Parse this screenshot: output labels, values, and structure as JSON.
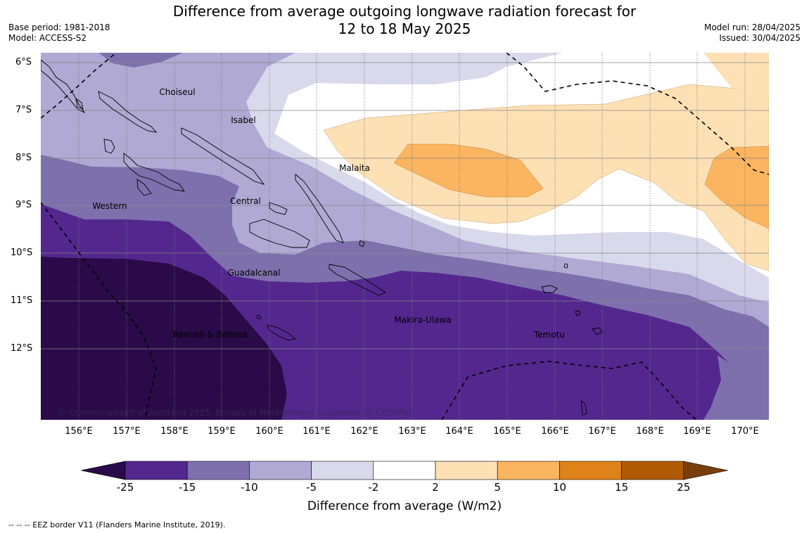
{
  "title_line1": "Difference from average outgoing longwave radiation forecast for",
  "title_line2": "12 to 18 May 2025",
  "base_period": "Base period: 1981-2018",
  "model": "Model: ACCESS-S2",
  "model_run": "Model run: 28/04/2025",
  "issued": "Issued: 30/04/2025",
  "latitude_labels": [
    "6°S",
    "7°S",
    "8°S",
    "9°S",
    "10°S",
    "11°S",
    "12°S"
  ],
  "longitude_labels": [
    "156°E",
    "157°E",
    "158°E",
    "159°E",
    "160°E",
    "161°E",
    "162°E",
    "163°E",
    "164°E",
    "165°E",
    "166°E",
    "167°E",
    "168°E",
    "169°E",
    "170°E"
  ],
  "places": {
    "choiseul": "Choiseul",
    "isabel": "Isabel",
    "malaita": "Malaita",
    "central": "Central",
    "western": "Western",
    "guadalcanal": "Guadalcanal",
    "makira_ulawa": "Makira-Ulawa",
    "temotu": "Temotu",
    "rennell_bellona": "Rennell & Bellona"
  },
  "copyright": "© Commonwealth of Australia 2025, Bureau of Meteorology, supported by COSPPac",
  "colorbar": {
    "ticks": [
      "-25",
      "-15",
      "-10",
      "-5",
      "-2",
      "2",
      "5",
      "10",
      "15",
      "25"
    ],
    "colors": [
      "#2a0a48",
      "#54278f",
      "#7e70ad",
      "#afa9d3",
      "#d9d9ec",
      "#ffffff",
      "#fde0b4",
      "#fbb561",
      "#e0821a",
      "#b15a06",
      "#7a3e0a"
    ],
    "label": "Difference from average (W/m2)"
  },
  "footer": "--  --  -- EEZ border V11 (Flanders Marine Institute, 2019)."
}
